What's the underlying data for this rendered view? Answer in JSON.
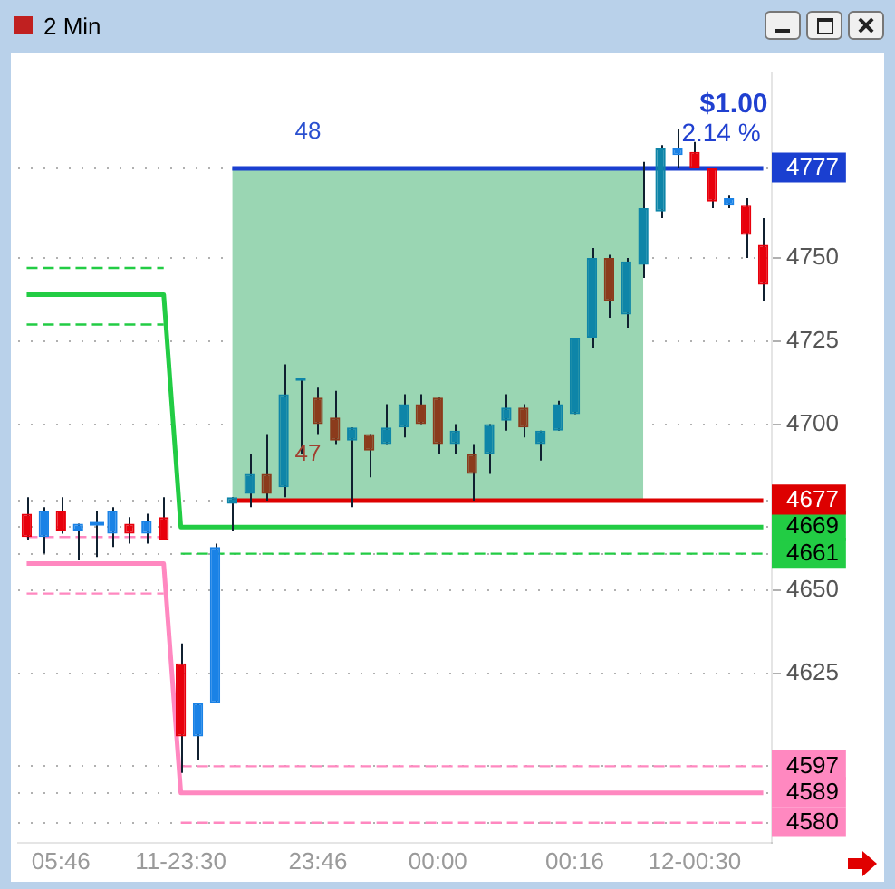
{
  "chart_data": {
    "type": "candlestick",
    "title": "2 Min",
    "categories": [
      null,
      null,
      "05:46",
      null,
      null,
      null,
      null,
      null,
      null,
      "11-23:30",
      null,
      null,
      null,
      null,
      null,
      null,
      null,
      "23:46",
      null,
      null,
      null,
      null,
      null,
      null,
      "00:00",
      null,
      null,
      null,
      null,
      null,
      null,
      null,
      "00:16",
      null,
      null,
      null,
      null,
      null,
      null,
      "12-00:30",
      null,
      null,
      null,
      null
    ],
    "ohlc": [
      [
        4673,
        4678,
        4665,
        4666
      ],
      [
        4666,
        4675,
        4661,
        4674
      ],
      [
        4674,
        4678,
        4667,
        4668
      ],
      [
        4668,
        4670,
        4659,
        4670
      ],
      [
        4670,
        4674,
        4660,
        4670
      ],
      [
        4667,
        4675,
        4663,
        4674
      ],
      [
        4670,
        4672,
        4664,
        4667
      ],
      [
        4667,
        4673,
        4664,
        4671
      ],
      [
        4672,
        4678,
        4665,
        4665
      ],
      [
        4628,
        4634,
        4595,
        4606
      ],
      [
        4606,
        4616,
        4599,
        4616
      ],
      [
        4616,
        4664,
        4616,
        4663
      ],
      [
        4676,
        4678,
        4668,
        4678
      ],
      [
        4679,
        4691,
        4675,
        4685
      ],
      [
        4685,
        4697,
        4677,
        4679
      ],
      [
        4681,
        4718,
        4678,
        4709
      ],
      [
        4713,
        4714,
        4691,
        4714
      ],
      [
        4708,
        4711,
        4697,
        4700
      ],
      [
        4702,
        4710,
        4694,
        4695
      ],
      [
        4695,
        4699,
        4675,
        4699
      ],
      [
        4697,
        4697,
        4684,
        4692
      ],
      [
        4694,
        4706,
        4694,
        4699
      ],
      [
        4699,
        4709,
        4696,
        4706
      ],
      [
        4706,
        4709,
        4700,
        4700
      ],
      [
        4708,
        4708,
        4691,
        4694
      ],
      [
        4694,
        4700,
        4691,
        4698
      ],
      [
        4691,
        4694,
        4677,
        4685
      ],
      [
        4691,
        4700,
        4685,
        4700
      ],
      [
        4701,
        4709,
        4698,
        4705
      ],
      [
        4705,
        4706,
        4696,
        4699
      ],
      [
        4694,
        4698,
        4689,
        4698
      ],
      [
        4698,
        4707,
        4698,
        4706
      ],
      [
        4703,
        4726,
        4703,
        4726
      ],
      [
        4726,
        4753,
        4723,
        4750
      ],
      [
        4750,
        4751,
        4732,
        4737
      ],
      [
        4733,
        4750,
        4729,
        4749
      ],
      [
        4748,
        4779,
        4744,
        4765
      ],
      [
        4764,
        4784,
        4762,
        4783
      ],
      [
        4781,
        4789,
        4777,
        4783
      ],
      [
        4782,
        4785,
        4777,
        4777
      ],
      [
        4777,
        4777,
        4765,
        4767
      ],
      [
        4766,
        4769,
        4765,
        4768
      ],
      [
        4766,
        4768,
        4750,
        4757
      ],
      [
        4754,
        4762,
        4737,
        4742
      ]
    ],
    "colors": [
      "#e8000c",
      "#1a82e6",
      "#e8000c",
      "#1a82e6",
      "#1a82e6",
      "#1a82e6",
      "#e8000c",
      "#1a82e6",
      "#e8000c",
      "#e8000c",
      "#1a82e6",
      "#1a82e6",
      "#0e85a8",
      "#0e85a8",
      "#8b3b1c",
      "#0e85a8",
      "#0e85a8",
      "#8b3b1c",
      "#8b3b1c",
      "#0e85a8",
      "#8b3b1c",
      "#0e85a8",
      "#0e85a8",
      "#8b3b1c",
      "#8b3b1c",
      "#0e85a8",
      "#8b3b1c",
      "#0e85a8",
      "#0e85a8",
      "#8b3b1c",
      "#0e85a8",
      "#0e85a8",
      "#0e85a8",
      "#0e85a8",
      "#8b3b1c",
      "#0e85a8",
      "#0e85a8",
      "#0e85a8",
      "#1a82e6",
      "#e8000c",
      "#e8000c",
      "#1a82e6",
      "#e8000c",
      "#e8000c"
    ],
    "series": [
      {
        "type": "line",
        "color": "#22cc44",
        "line_style": "solid",
        "values": [
          4739,
          4739,
          4739,
          4739,
          4739,
          4739,
          4739,
          4739,
          4739,
          4669,
          4669,
          4669,
          4669,
          4669,
          4669,
          4669,
          4669,
          4669,
          4669,
          4669,
          4669,
          4669,
          4669,
          4669,
          4669,
          4669,
          4669,
          4669,
          4669,
          4669,
          4669,
          4669,
          4669,
          4669,
          4669,
          4669,
          4669,
          4669,
          4669,
          4669,
          4669,
          4669,
          4669,
          4669
        ]
      },
      {
        "type": "line",
        "color": "#ff88c0",
        "line_style": "solid",
        "values": [
          4658,
          4658,
          4658,
          4658,
          4658,
          4658,
          4658,
          4658,
          4658,
          4589,
          4589,
          4589,
          4589,
          4589,
          4589,
          4589,
          4589,
          4589,
          4589,
          4589,
          4589,
          4589,
          4589,
          4589,
          4589,
          4589,
          4589,
          4589,
          4589,
          4589,
          4589,
          4589,
          4589,
          4589,
          4589,
          4589,
          4589,
          4589,
          4589,
          4589,
          4589,
          4589,
          4589,
          4589
        ]
      },
      {
        "type": "line",
        "color": "#22cc44",
        "line_style": "dashed",
        "values": [
          4747,
          4747,
          4747,
          4747,
          4747,
          4747,
          4747,
          4747,
          4747,
          null,
          null,
          null,
          null,
          null,
          null,
          null,
          null,
          null,
          null,
          null,
          null,
          null,
          null,
          null,
          null,
          null,
          null,
          null,
          null,
          null,
          null,
          null,
          null,
          null,
          null,
          null,
          null,
          null,
          null,
          null,
          null,
          null,
          null,
          null
        ]
      },
      {
        "type": "line",
        "color": "#22cc44",
        "line_style": "dashed",
        "values": [
          4730,
          4730,
          4730,
          4730,
          4730,
          4730,
          4730,
          4730,
          4730,
          null,
          null,
          null,
          null,
          null,
          null,
          null,
          null,
          null,
          null,
          null,
          null,
          null,
          null,
          null,
          null,
          null,
          null,
          null,
          null,
          null,
          null,
          null,
          null,
          null,
          null,
          null,
          null,
          null,
          null,
          null,
          null,
          null,
          null,
          null
        ]
      },
      {
        "type": "line",
        "color": "#ff88c0",
        "line_style": "dashed",
        "values": [
          4666,
          4666,
          4666,
          4666,
          4666,
          4666,
          4666,
          4666,
          4666,
          null,
          null,
          null,
          null,
          null,
          null,
          null,
          null,
          null,
          null,
          null,
          null,
          null,
          null,
          null,
          null,
          null,
          null,
          null,
          null,
          null,
          null,
          null,
          null,
          null,
          null,
          null,
          null,
          null,
          null,
          null,
          null,
          null,
          null,
          null
        ]
      },
      {
        "type": "line",
        "color": "#ff88c0",
        "line_style": "dashed",
        "values": [
          4649,
          4649,
          4649,
          4649,
          4649,
          4649,
          4649,
          4649,
          4649,
          null,
          null,
          null,
          null,
          null,
          null,
          null,
          null,
          null,
          null,
          null,
          null,
          null,
          null,
          null,
          null,
          null,
          null,
          null,
          null,
          null,
          null,
          null,
          null,
          null,
          null,
          null,
          null,
          null,
          null,
          null,
          null,
          null,
          null,
          null
        ]
      },
      {
        "type": "line",
        "color": "#22cc44",
        "line_style": "dashed",
        "values": [
          null,
          null,
          null,
          null,
          null,
          null,
          null,
          null,
          null,
          4661,
          4661,
          4661,
          4661,
          4661,
          4661,
          4661,
          4661,
          4661,
          4661,
          4661,
          4661,
          4661,
          4661,
          4661,
          4661,
          4661,
          4661,
          4661,
          4661,
          4661,
          4661,
          4661,
          4661,
          4661,
          4661,
          4661,
          4661,
          4661,
          4661,
          4661,
          4661,
          4661,
          4661,
          4661
        ]
      },
      {
        "type": "line",
        "color": "#ff88c0",
        "line_style": "dashed",
        "values": [
          null,
          null,
          null,
          null,
          null,
          null,
          null,
          null,
          null,
          4597,
          4597,
          4597,
          4597,
          4597,
          4597,
          4597,
          4597,
          4597,
          4597,
          4597,
          4597,
          4597,
          4597,
          4597,
          4597,
          4597,
          4597,
          4597,
          4597,
          4597,
          4597,
          4597,
          4597,
          4597,
          4597,
          4597,
          4597,
          4597,
          4597,
          4597,
          4597,
          4597,
          4597,
          4597
        ]
      },
      {
        "type": "line",
        "color": "#ff88c0",
        "line_style": "dashed",
        "values": [
          null,
          null,
          null,
          null,
          null,
          null,
          null,
          null,
          null,
          4580,
          4580,
          4580,
          4580,
          4580,
          4580,
          4580,
          4580,
          4580,
          4580,
          4580,
          4580,
          4580,
          4580,
          4580,
          4580,
          4580,
          4580,
          4580,
          4580,
          4580,
          4580,
          4580,
          4580,
          4580,
          4580,
          4580,
          4580,
          4580,
          4580,
          4580,
          4580,
          4580,
          4580,
          4580
        ]
      },
      {
        "type": "line",
        "color": "#1a3fd0",
        "line_style": "solid",
        "values": [
          null,
          null,
          null,
          null,
          null,
          null,
          null,
          null,
          null,
          null,
          null,
          null,
          4777,
          4777,
          4777,
          4777,
          4777,
          4777,
          4777,
          4777,
          4777,
          4777,
          4777,
          4777,
          4777,
          4777,
          4777,
          4777,
          4777,
          4777,
          4777,
          4777,
          4777,
          4777,
          4777,
          4777,
          4777,
          4777,
          4777,
          4777,
          4777,
          4777,
          4777,
          4777
        ]
      },
      {
        "type": "area",
        "color": "#9ad6b3",
        "values": [
          null,
          null,
          null,
          null,
          null,
          null,
          null,
          null,
          null,
          null,
          null,
          null,
          4777,
          4777,
          4777,
          4777,
          4777,
          4777,
          4777,
          4777,
          4777,
          4777,
          4777,
          4777,
          4777,
          4777,
          4777,
          4777,
          4777,
          4777,
          4777,
          4777,
          4777,
          4777,
          4777,
          4777,
          4777,
          null,
          null,
          null,
          null,
          null,
          null,
          null
        ]
      },
      {
        "type": "line",
        "color": "#dd0000",
        "line_style": "solid",
        "values": [
          null,
          null,
          null,
          null,
          null,
          null,
          null,
          null,
          null,
          null,
          null,
          null,
          4677,
          4677,
          4677,
          4677,
          4677,
          4677,
          4677,
          4677,
          4677,
          4677,
          4677,
          4677,
          4677,
          4677,
          4677,
          4677,
          4677,
          4677,
          4677,
          4677,
          4677,
          4677,
          4677,
          4677,
          4677,
          4677,
          4677,
          4677,
          4677,
          4677,
          4677,
          4677
        ]
      }
    ],
    "ylim": [
      4574,
      4806
    ],
    "yticks": [
      4580,
      4589,
      4597,
      4625,
      4650,
      4661,
      4669,
      4677,
      4700,
      4725,
      4750,
      4777
    ],
    "grid": "y",
    "annotations": [
      "48",
      "47",
      "$1.00",
      "2.14 %"
    ]
  }
}
